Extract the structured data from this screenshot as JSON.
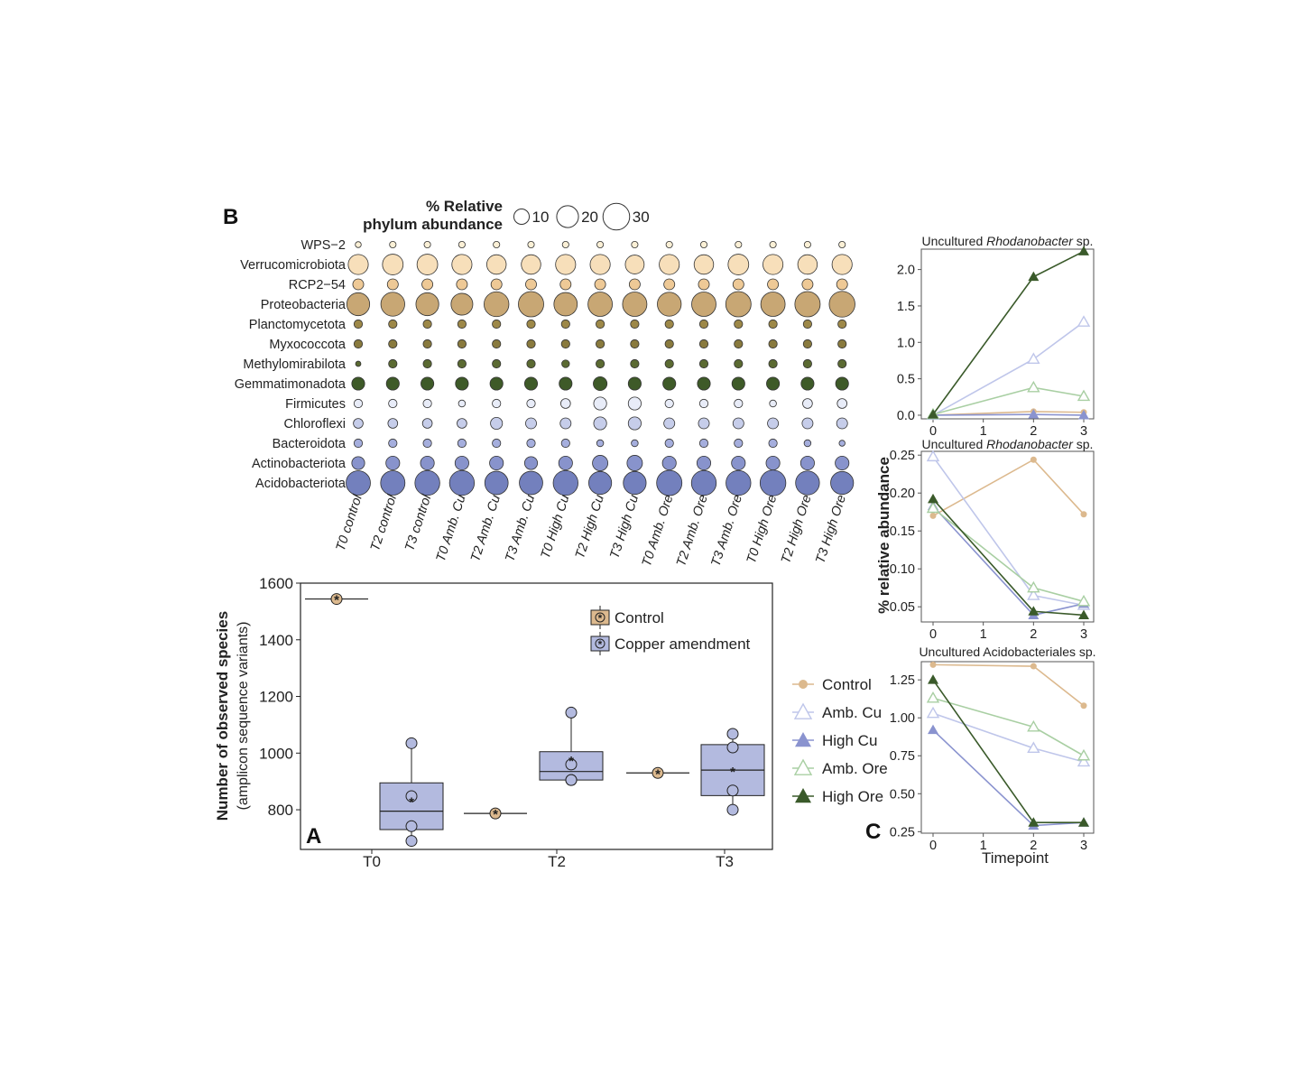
{
  "figure": {
    "panel_labels": {
      "a": "A",
      "b": "B",
      "c": "C"
    }
  },
  "chart_data": [
    {
      "panel": "B",
      "type": "bubble",
      "size_legend": {
        "title_line1": "% Relative",
        "title_line2": "phylum abundance",
        "values": [
          10,
          20,
          30
        ]
      },
      "phyla": [
        "WPS−2",
        "Verrucomicrobiota",
        "RCP2−54",
        "Proteobacteria",
        "Planctomycetota",
        "Myxococcota",
        "Methylomirabilota",
        "Gemmatimonadota",
        "Firmicutes",
        "Chloroflexi",
        "Bacteroidota",
        "Actinobacteriota",
        "Acidobacteriota"
      ],
      "phylum_colors": [
        "#fbf0d6",
        "#f7dfba",
        "#eec996",
        "#c8a774",
        "#9d8848",
        "#897a3e",
        "#5b6a32",
        "#3e5a28",
        "#e8ecf8",
        "#c6cdea",
        "#a5aedd",
        "#8893cc",
        "#7380bd"
      ],
      "samples": [
        "T0 control",
        "T2 control",
        "T3 control",
        "T0 Amb. Cu",
        "T2 Amb. Cu",
        "T3 Amb. Cu",
        "T0 High Cu",
        "T2 High Cu",
        "T3 High Cu",
        "T0 Amb. Ore",
        "T2 Amb. Ore",
        "T3 Amb. Ore",
        "T0 High Ore",
        "T2 High Ore",
        "T3 High Ore"
      ],
      "values": [
        [
          1.5,
          1.8,
          1.8,
          1.8,
          1.8,
          1.8,
          1.8,
          1.8,
          1.8,
          1.8,
          1.8,
          1.8,
          1.8,
          1.8,
          1.8
        ],
        [
          17,
          18,
          18,
          17,
          16,
          16,
          17,
          17,
          15,
          17,
          16,
          18,
          17,
          16,
          17
        ],
        [
          5,
          5,
          5,
          5,
          5,
          5,
          5,
          5,
          5,
          5,
          5,
          5,
          5,
          5,
          5
        ],
        [
          22,
          24,
          22,
          20,
          26,
          27,
          23,
          25,
          25,
          24,
          25,
          27,
          25,
          27,
          28
        ],
        [
          3,
          3,
          3,
          3,
          3,
          3,
          3,
          3,
          3,
          3,
          3,
          3,
          3,
          3,
          3
        ],
        [
          3,
          3,
          3,
          3,
          3,
          3,
          3,
          3,
          3,
          3,
          3,
          3,
          3,
          3,
          3
        ],
        [
          1.2,
          3,
          3,
          3,
          3,
          3,
          2.5,
          3,
          3,
          3,
          3,
          3,
          3,
          3,
          3
        ],
        [
          7,
          7,
          7,
          7,
          7,
          7,
          7,
          8,
          7,
          7,
          7,
          7,
          7,
          7,
          7
        ],
        [
          3,
          3,
          3,
          2,
          3,
          3,
          4,
          7,
          7,
          3,
          3,
          3,
          2,
          4,
          4
        ],
        [
          4,
          4,
          4,
          4,
          6,
          5,
          5,
          7,
          7,
          5,
          5,
          5,
          5,
          5,
          5
        ],
        [
          3,
          3,
          3,
          3,
          3,
          3,
          3,
          2,
          2,
          3,
          3,
          3,
          3,
          2,
          1.5
        ],
        [
          7,
          8,
          8,
          8,
          8,
          7,
          8,
          10,
          10,
          8,
          8,
          8,
          8,
          8,
          8
        ],
        [
          25,
          25,
          26,
          26,
          23,
          23,
          26,
          22,
          22,
          27,
          26,
          26,
          28,
          24,
          22
        ]
      ]
    },
    {
      "panel": "A",
      "type": "box",
      "ylabel_line1": "Number of observed species",
      "ylabel_line2": "(amplicon sequence variants)",
      "categories": [
        "T0",
        "T2",
        "T3"
      ],
      "ylim": [
        660,
        1600
      ],
      "yticks": [
        800,
        1000,
        1200,
        1400,
        1600
      ],
      "legend": [
        "Control",
        "Copper amendment"
      ],
      "legend_position": "top-right",
      "series_colors": {
        "Control": "#dcb98e",
        "Copper amendment": "#b3badf"
      },
      "groups": [
        {
          "timepoint": "T0",
          "series": "Control",
          "values": [
            1544
          ],
          "mean": 1544
        },
        {
          "timepoint": "T0",
          "series": "Copper amendment",
          "q1": 730,
          "median": 795,
          "q3": 895,
          "whisker_low": 690,
          "whisker_high": 1035,
          "mean": 830,
          "points": [
            1035,
            848,
            742,
            690
          ]
        },
        {
          "timepoint": "T2",
          "series": "Control",
          "values": [
            787
          ],
          "mean": 787
        },
        {
          "timepoint": "T2",
          "series": "Copper amendment",
          "q1": 905,
          "median": 935,
          "q3": 1005,
          "whisker_low": 900,
          "whisker_high": 1143,
          "mean": 975,
          "points": [
            1143,
            960,
            905,
            905
          ]
        },
        {
          "timepoint": "T3",
          "series": "Control",
          "values": [
            930
          ],
          "mean": 930
        },
        {
          "timepoint": "T3",
          "series": "Copper amendment",
          "q1": 850,
          "median": 940,
          "q3": 1030,
          "whisker_low": 800,
          "whisker_high": 1068,
          "mean": 938,
          "points": [
            1068,
            1020,
            868,
            800
          ]
        }
      ]
    },
    {
      "panel": "C",
      "type": "line",
      "xlabel": "Timepoint",
      "ylabel": "% relative abundance",
      "x": [
        0,
        2,
        3
      ],
      "xticks": [
        0,
        1,
        2,
        3
      ],
      "legend": [
        {
          "name": "Control",
          "color": "#dcb98e",
          "marker": "circle"
        },
        {
          "name": "Amb. Cu",
          "color": "#bfc6ea",
          "marker": "triangle-open"
        },
        {
          "name": "High Cu",
          "color": "#8a93cf",
          "marker": "triangle"
        },
        {
          "name": "Amb. Ore",
          "color": "#a9cfa3",
          "marker": "triangle-open"
        },
        {
          "name": "High Ore",
          "color": "#3a5a2a",
          "marker": "triangle"
        }
      ],
      "subplots": [
        {
          "title_prefix": "Uncultured ",
          "title_italic": "Rhodanobacter",
          "title_suffix": " sp.",
          "ylim": [
            -0.05,
            2.28
          ],
          "yticks": [
            0.0,
            0.5,
            1.0,
            1.5,
            2.0
          ],
          "ytick_labels": [
            "0.0",
            "0.5",
            "1.0",
            "1.5",
            "2.0"
          ],
          "series": [
            {
              "name": "Control",
              "values": [
                0.0,
                0.05,
                0.04
              ]
            },
            {
              "name": "Amb. Cu",
              "values": [
                0.0,
                0.77,
                1.28
              ]
            },
            {
              "name": "High Cu",
              "values": [
                0.0,
                0.01,
                0.0
              ]
            },
            {
              "name": "Amb. Ore",
              "values": [
                0.01,
                0.38,
                0.26
              ]
            },
            {
              "name": "High Ore",
              "values": [
                0.01,
                1.9,
                2.25
              ]
            }
          ]
        },
        {
          "title_prefix": "Uncultured ",
          "title_italic": "Rhodanobacter",
          "title_suffix": " sp.",
          "ylim": [
            0.03,
            0.255
          ],
          "yticks": [
            0.05,
            0.1,
            0.15,
            0.2,
            0.25
          ],
          "ytick_labels": [
            "0.05",
            "0.10",
            "0.15",
            "0.20",
            "0.25"
          ],
          "series": [
            {
              "name": "Control",
              "values": [
                0.17,
                0.244,
                0.172
              ]
            },
            {
              "name": "Amb. Cu",
              "values": [
                0.248,
                0.065,
                0.052
              ]
            },
            {
              "name": "High Cu",
              "values": [
                0.183,
                0.039,
                0.054
              ]
            },
            {
              "name": "Amb. Ore",
              "values": [
                0.18,
                0.075,
                0.057
              ]
            },
            {
              "name": "High Ore",
              "values": [
                0.192,
                0.044,
                0.039
              ]
            }
          ]
        },
        {
          "title_prefix": "Uncultured Acidobacteriales sp.",
          "title_italic": "",
          "title_suffix": "",
          "ylim": [
            0.24,
            1.37
          ],
          "yticks": [
            0.25,
            0.5,
            0.75,
            1.0,
            1.25
          ],
          "ytick_labels": [
            "0.25",
            "0.50",
            "0.75",
            "1.00",
            "1.25"
          ],
          "series": [
            {
              "name": "Control",
              "values": [
                1.35,
                1.34,
                1.08
              ]
            },
            {
              "name": "Amb. Cu",
              "values": [
                1.03,
                0.8,
                0.71
              ]
            },
            {
              "name": "High Cu",
              "values": [
                0.92,
                0.29,
                0.31
              ]
            },
            {
              "name": "Amb. Ore",
              "values": [
                1.13,
                0.94,
                0.75
              ]
            },
            {
              "name": "High Ore",
              "values": [
                1.25,
                0.31,
                0.31
              ]
            }
          ]
        }
      ]
    }
  ]
}
